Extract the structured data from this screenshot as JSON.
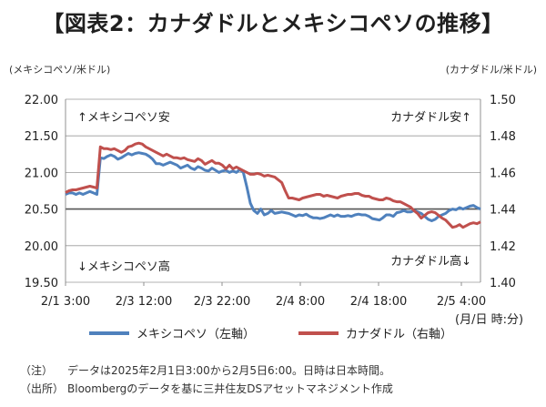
{
  "title": "【図表2：カナダドルとメキシコペソの推移】",
  "left_unit": "(メキシコペソ/米ドル)",
  "right_unit": "(カナダドル/米ドル)",
  "x_unit": "(月/日 時:分)",
  "notes": [
    {
      "label": "（注）",
      "text": "データは2025年2月1日3:00から2月5日6:00。日時は日本時間。"
    },
    {
      "label": "（出所）",
      "text": "Bloombergのデータを基に三井住友DSアセットマネジメント作成"
    }
  ],
  "chart_data": {
    "type": "line",
    "x_tick_labels": [
      "2/1 3:00",
      "2/3 12:00",
      "2/3 22:00",
      "2/4 8:00",
      "2/4 18:00",
      "2/5 4:00"
    ],
    "y_left": {
      "range": [
        19.5,
        22.0
      ],
      "ticks": [
        "19.50",
        "20.00",
        "20.50",
        "21.00",
        "21.50",
        "22.00"
      ]
    },
    "y_right": {
      "range": [
        1.4,
        1.5
      ],
      "ticks": [
        "1.40",
        "1.42",
        "1.44",
        "1.46",
        "1.48",
        "1.50"
      ]
    },
    "annotations": {
      "top_left": "↑メキシコペソ安",
      "bottom_left": "↓メキシコペソ高",
      "top_right": "カナダドル安↑",
      "bottom_right": "カナダドル高↓"
    },
    "colors": {
      "mxn": "#4f81bd",
      "cad": "#c0504d"
    },
    "series": [
      {
        "name": "メキシコペソ（左軸）",
        "axis": "left",
        "values": [
          20.7,
          20.72,
          20.72,
          20.7,
          20.72,
          20.7,
          20.72,
          20.74,
          20.72,
          20.7,
          21.2,
          21.19,
          21.22,
          21.24,
          21.22,
          21.18,
          21.2,
          21.23,
          21.26,
          21.24,
          21.26,
          21.27,
          21.26,
          21.25,
          21.22,
          21.18,
          21.12,
          21.12,
          21.1,
          21.12,
          21.14,
          21.12,
          21.1,
          21.06,
          21.08,
          21.1,
          21.06,
          21.04,
          21.08,
          21.06,
          21.03,
          21.02,
          21.06,
          21.03,
          21.0,
          21.02,
          21.03,
          21.0,
          21.02,
          21.0,
          21.04,
          21.0,
          20.8,
          20.58,
          20.48,
          20.44,
          20.5,
          20.42,
          20.44,
          20.48,
          20.44,
          20.45,
          20.46,
          20.45,
          20.44,
          20.42,
          20.4,
          20.42,
          20.41,
          20.43,
          20.4,
          20.38,
          20.38,
          20.37,
          20.38,
          20.4,
          20.42,
          20.4,
          20.42,
          20.4,
          20.4,
          20.41,
          20.4,
          20.42,
          20.43,
          20.42,
          20.42,
          20.4,
          20.37,
          20.36,
          20.35,
          20.38,
          20.42,
          20.42,
          20.4,
          20.45,
          20.46,
          20.48,
          20.46,
          20.46,
          20.48,
          20.46,
          20.44,
          20.4,
          20.36,
          20.34,
          20.36,
          20.4,
          20.42,
          20.44,
          20.48,
          20.5,
          20.49,
          20.52,
          20.5,
          20.52,
          20.54,
          20.55,
          20.52,
          20.5
        ]
      },
      {
        "name": "カナダドル（右軸）",
        "axis": "right",
        "values": [
          1.449,
          1.45,
          1.4505,
          1.4505,
          1.451,
          1.4515,
          1.452,
          1.4525,
          1.452,
          1.4515,
          1.474,
          1.473,
          1.473,
          1.4725,
          1.473,
          1.472,
          1.471,
          1.472,
          1.474,
          1.4745,
          1.4755,
          1.476,
          1.4755,
          1.474,
          1.473,
          1.472,
          1.471,
          1.47,
          1.469,
          1.47,
          1.469,
          1.468,
          1.468,
          1.4675,
          1.468,
          1.467,
          1.4665,
          1.466,
          1.4675,
          1.4665,
          1.4645,
          1.4655,
          1.4665,
          1.465,
          1.465,
          1.464,
          1.462,
          1.464,
          1.462,
          1.463,
          1.462,
          1.461,
          1.46,
          1.459,
          1.459,
          1.4595,
          1.459,
          1.458,
          1.4585,
          1.458,
          1.4575,
          1.456,
          1.4545,
          1.45,
          1.446,
          1.446,
          1.4455,
          1.445,
          1.446,
          1.4465,
          1.447,
          1.4475,
          1.448,
          1.448,
          1.447,
          1.4475,
          1.447,
          1.4465,
          1.446,
          1.447,
          1.4475,
          1.448,
          1.448,
          1.4485,
          1.4485,
          1.4475,
          1.447,
          1.447,
          1.446,
          1.4455,
          1.445,
          1.445,
          1.446,
          1.4455,
          1.4445,
          1.444,
          1.444,
          1.443,
          1.442,
          1.441,
          1.439,
          1.4375,
          1.435,
          1.4365,
          1.438,
          1.4385,
          1.438,
          1.4365,
          1.435,
          1.434,
          1.432,
          1.43,
          1.4305,
          1.4315,
          1.43,
          1.431,
          1.432,
          1.4325,
          1.432,
          1.433
        ]
      }
    ]
  }
}
